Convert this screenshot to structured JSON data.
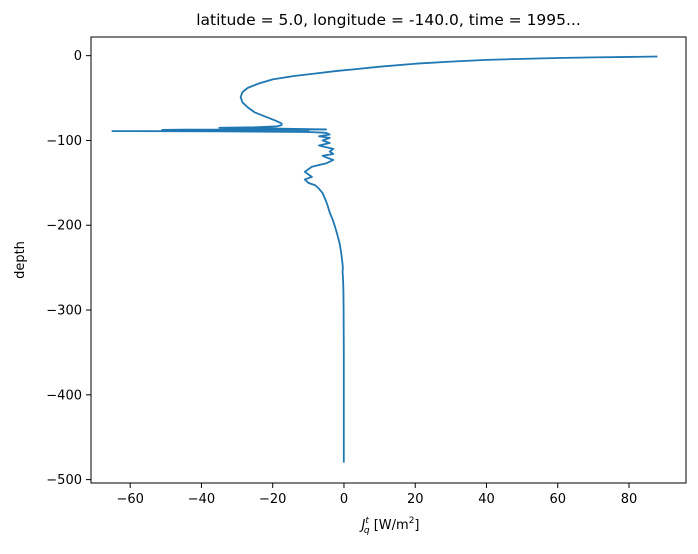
{
  "chart_data": {
    "type": "line",
    "title": "latitude = 5.0, longitude = -140.0, time = 1995...",
    "xlabel": {
      "base": "J",
      "sup": "t",
      "sub": "q",
      "unit_pre": " [W/m",
      "unit_sup": "2",
      "unit_post": "]"
    },
    "ylabel": "depth",
    "xlim": [
      -71,
      96
    ],
    "ylim": [
      -504,
      22
    ],
    "xticks": [
      -60,
      -40,
      -20,
      0,
      20,
      40,
      60,
      80
    ],
    "xtick_labels": [
      "−60",
      "−40",
      "−20",
      "0",
      "20",
      "40",
      "60",
      "80"
    ],
    "yticks": [
      0,
      -100,
      -200,
      -300,
      -400,
      -500
    ],
    "ytick_labels": [
      "0",
      "−100",
      "−200",
      "−300",
      "−400",
      "−500"
    ],
    "grid": false,
    "line_color": "#1f77b4",
    "series": [
      {
        "x": [
          88,
          80,
          70,
          60,
          50,
          40,
          30,
          20,
          10,
          3,
          -2,
          -8,
          -14,
          -20,
          -24,
          -27,
          -28.5,
          -29,
          -28.5,
          -27,
          -25,
          -22,
          -19,
          -17.5,
          -17.5,
          -19,
          -25,
          -35,
          -28,
          -20,
          -12,
          -5,
          -45,
          -51,
          -35,
          -26,
          -40,
          -20,
          -10,
          -65,
          -35,
          -10,
          -5,
          -4,
          -7,
          -4,
          -6,
          -4,
          -7,
          -5,
          -3,
          -4,
          -3,
          -6,
          -5,
          -3,
          -4,
          -5,
          -7,
          -9,
          -10,
          -11,
          -10,
          -9,
          -11,
          -10,
          -8,
          -7,
          -6,
          -5.5,
          -5,
          -4.5,
          -4,
          -3.2,
          -2.5,
          -1.8,
          -1.2,
          -0.8,
          -0.5,
          -0.3,
          -0.4,
          -0.3,
          -0.2,
          -0.15,
          -0.1,
          -0.05,
          -0.05,
          -0.05
        ],
        "y": [
          -1,
          -1.5,
          -2,
          -2.8,
          -3.8,
          -5,
          -7,
          -9.5,
          -13,
          -16,
          -18,
          -21,
          -24,
          -28,
          -33,
          -38,
          -43,
          -49,
          -55,
          -61,
          -67,
          -72,
          -77,
          -80,
          -82,
          -83.5,
          -84.5,
          -85,
          -85.5,
          -86,
          -86.5,
          -87,
          -87.3,
          -87.5,
          -87.7,
          -88,
          -88.3,
          -88.6,
          -88.8,
          -89,
          -89.3,
          -90,
          -91,
          -93,
          -95,
          -97,
          -100,
          -103,
          -106,
          -108,
          -110,
          -113,
          -116,
          -118,
          -120,
          -123,
          -125,
          -127,
          -129,
          -131,
          -134,
          -137,
          -140,
          -143,
          -146,
          -150,
          -153,
          -157,
          -162,
          -167,
          -172,
          -178,
          -185,
          -193,
          -202,
          -212,
          -222,
          -232,
          -242,
          -250,
          -255,
          -260,
          -270,
          -280,
          -300,
          -350,
          -420,
          -480
        ]
      }
    ]
  }
}
